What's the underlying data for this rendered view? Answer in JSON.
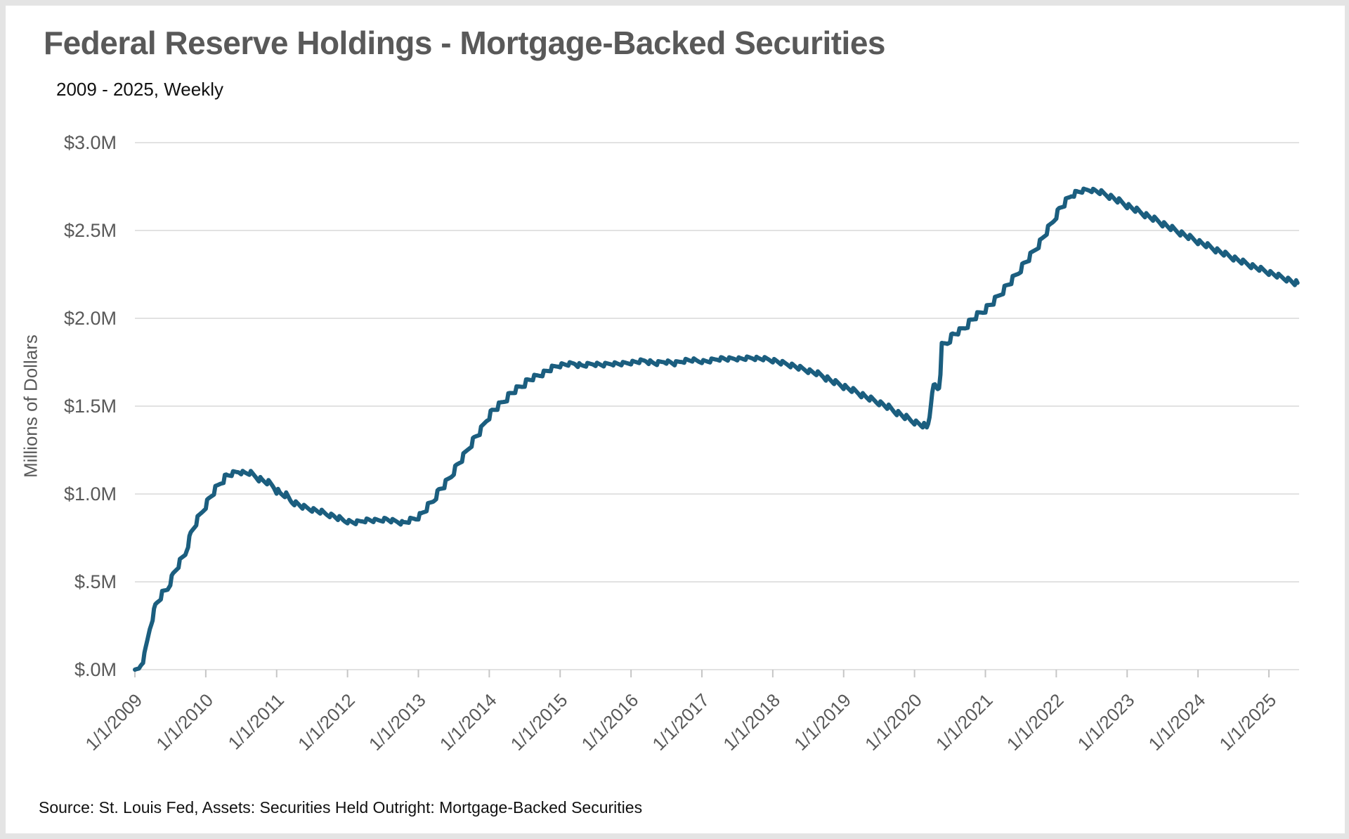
{
  "page": {
    "title": "Federal Reserve Holdings - Mortgage-Backed Securities",
    "subtitle": "2009 - 2025, Weekly",
    "source_note": "Source: St. Louis Fed, Assets: Securities Held Outright: Mortgage-Backed Securities"
  },
  "chart_data": {
    "type": "line",
    "title": "Federal Reserve Holdings - Mortgage-Backed Securities",
    "subtitle": "2009 - 2025, Weekly",
    "ylabel": "Millions of Dollars",
    "source": "Source: St. Louis Fed, Assets: Securities Held Outright: Mortgage-Backed Securities",
    "grid": "horizontal",
    "legend": "none",
    "colors": {
      "line": "#1b5e7f",
      "gridline": "#d9d9d9",
      "tick_mark": "#c6c6c6",
      "axis_text": "#595959",
      "title_text": "#595959",
      "body_text": "#111111",
      "page_border": "#e4e4e4"
    },
    "y_axis": {
      "tick_labels": [
        "$.0M",
        "$.5M",
        "$1.0M",
        "$1.5M",
        "$2.0M",
        "$2.5M",
        "$3.0M"
      ],
      "tick_values": [
        0,
        0.5,
        1.0,
        1.5,
        2.0,
        2.5,
        3.0
      ],
      "ylim": [
        0,
        3.0
      ]
    },
    "x_axis": {
      "tick_labels": [
        "1/1/2009",
        "1/1/2010",
        "1/1/2011",
        "1/1/2012",
        "1/1/2013",
        "1/1/2014",
        "1/1/2015",
        "1/1/2016",
        "1/1/2017",
        "1/1/2018",
        "1/1/2019",
        "1/1/2020",
        "1/1/2021",
        "1/1/2022",
        "1/1/2023",
        "1/1/2024",
        "1/1/2025"
      ],
      "tick_years": [
        2009,
        2010,
        2011,
        2012,
        2013,
        2014,
        2015,
        2016,
        2017,
        2018,
        2019,
        2020,
        2021,
        2022,
        2023,
        2024,
        2025
      ],
      "range": [
        2009.0,
        2025.42
      ]
    },
    "series": [
      {
        "name": "Mortgage-Backed Securities",
        "color": "#1b5e7f",
        "points": [
          [
            2009.0,
            0.0
          ],
          [
            2009.06,
            0.007
          ],
          [
            2009.13,
            0.069
          ],
          [
            2009.21,
            0.237
          ],
          [
            2009.29,
            0.366
          ],
          [
            2009.38,
            0.428
          ],
          [
            2009.46,
            0.462
          ],
          [
            2009.54,
            0.542
          ],
          [
            2009.63,
            0.609
          ],
          [
            2009.71,
            0.66
          ],
          [
            2009.79,
            0.776
          ],
          [
            2009.88,
            0.852
          ],
          [
            2009.96,
            0.908
          ],
          [
            2010.04,
            0.968
          ],
          [
            2010.13,
            1.024
          ],
          [
            2010.21,
            1.066
          ],
          [
            2010.29,
            1.103
          ],
          [
            2010.38,
            1.117
          ],
          [
            2010.46,
            1.128
          ],
          [
            2010.54,
            1.121
          ],
          [
            2010.63,
            1.118
          ],
          [
            2010.71,
            1.099
          ],
          [
            2010.79,
            1.079
          ],
          [
            2010.88,
            1.065
          ],
          [
            2010.96,
            1.043
          ],
          [
            2011.04,
            1.004
          ],
          [
            2011.13,
            0.992
          ],
          [
            2011.21,
            0.958
          ],
          [
            2011.29,
            0.944
          ],
          [
            2011.38,
            0.927
          ],
          [
            2011.46,
            0.917
          ],
          [
            2011.54,
            0.908
          ],
          [
            2011.63,
            0.898
          ],
          [
            2011.71,
            0.885
          ],
          [
            2011.79,
            0.877
          ],
          [
            2011.88,
            0.862
          ],
          [
            2011.96,
            0.848
          ],
          [
            2012.04,
            0.842
          ],
          [
            2012.13,
            0.837
          ],
          [
            2012.21,
            0.848
          ],
          [
            2012.29,
            0.853
          ],
          [
            2012.38,
            0.849
          ],
          [
            2012.46,
            0.852
          ],
          [
            2012.54,
            0.857
          ],
          [
            2012.63,
            0.848
          ],
          [
            2012.71,
            0.843
          ],
          [
            2012.79,
            0.835
          ],
          [
            2012.88,
            0.852
          ],
          [
            2012.96,
            0.862
          ],
          [
            2013.04,
            0.884
          ],
          [
            2013.13,
            0.927
          ],
          [
            2013.21,
            0.964
          ],
          [
            2013.29,
            1.02
          ],
          [
            2013.38,
            1.058
          ],
          [
            2013.46,
            1.103
          ],
          [
            2013.54,
            1.16
          ],
          [
            2013.63,
            1.21
          ],
          [
            2013.71,
            1.264
          ],
          [
            2013.79,
            1.317
          ],
          [
            2013.88,
            1.362
          ],
          [
            2013.96,
            1.422
          ],
          [
            2014.04,
            1.472
          ],
          [
            2014.13,
            1.5
          ],
          [
            2014.21,
            1.532
          ],
          [
            2014.29,
            1.567
          ],
          [
            2014.38,
            1.596
          ],
          [
            2014.46,
            1.617
          ],
          [
            2014.54,
            1.645
          ],
          [
            2014.63,
            1.665
          ],
          [
            2014.71,
            1.678
          ],
          [
            2014.79,
            1.695
          ],
          [
            2014.88,
            1.717
          ],
          [
            2014.96,
            1.73
          ],
          [
            2015.04,
            1.737
          ],
          [
            2015.13,
            1.74
          ],
          [
            2015.21,
            1.744
          ],
          [
            2015.29,
            1.731
          ],
          [
            2015.38,
            1.735
          ],
          [
            2015.46,
            1.742
          ],
          [
            2015.54,
            1.738
          ],
          [
            2015.63,
            1.735
          ],
          [
            2015.71,
            1.743
          ],
          [
            2015.79,
            1.742
          ],
          [
            2015.88,
            1.741
          ],
          [
            2015.96,
            1.747
          ],
          [
            2016.04,
            1.751
          ],
          [
            2016.13,
            1.756
          ],
          [
            2016.21,
            1.76
          ],
          [
            2016.29,
            1.748
          ],
          [
            2016.38,
            1.743
          ],
          [
            2016.46,
            1.755
          ],
          [
            2016.54,
            1.751
          ],
          [
            2016.63,
            1.742
          ],
          [
            2016.71,
            1.756
          ],
          [
            2016.79,
            1.762
          ],
          [
            2016.88,
            1.762
          ],
          [
            2016.96,
            1.756
          ],
          [
            2017.04,
            1.755
          ],
          [
            2017.13,
            1.759
          ],
          [
            2017.21,
            1.769
          ],
          [
            2017.29,
            1.772
          ],
          [
            2017.38,
            1.768
          ],
          [
            2017.46,
            1.772
          ],
          [
            2017.54,
            1.77
          ],
          [
            2017.63,
            1.773
          ],
          [
            2017.71,
            1.776
          ],
          [
            2017.79,
            1.772
          ],
          [
            2017.88,
            1.77
          ],
          [
            2017.96,
            1.765
          ],
          [
            2018.04,
            1.758
          ],
          [
            2018.13,
            1.747
          ],
          [
            2018.21,
            1.74
          ],
          [
            2018.29,
            1.73
          ],
          [
            2018.38,
            1.718
          ],
          [
            2018.46,
            1.708
          ],
          [
            2018.54,
            1.697
          ],
          [
            2018.63,
            1.686
          ],
          [
            2018.71,
            1.672
          ],
          [
            2018.79,
            1.653
          ],
          [
            2018.88,
            1.636
          ],
          [
            2018.96,
            1.622
          ],
          [
            2019.04,
            1.605
          ],
          [
            2019.13,
            1.591
          ],
          [
            2019.21,
            1.576
          ],
          [
            2019.29,
            1.558
          ],
          [
            2019.38,
            1.542
          ],
          [
            2019.46,
            1.527
          ],
          [
            2019.54,
            1.513
          ],
          [
            2019.63,
            1.495
          ],
          [
            2019.71,
            1.474
          ],
          [
            2019.79,
            1.456
          ],
          [
            2019.88,
            1.437
          ],
          [
            2019.96,
            1.418
          ],
          [
            2020.04,
            1.404
          ],
          [
            2020.13,
            1.389
          ],
          [
            2020.18,
            1.372
          ],
          [
            2020.22,
            1.465
          ],
          [
            2020.25,
            1.58
          ],
          [
            2020.28,
            1.621
          ],
          [
            2020.32,
            1.598
          ],
          [
            2020.36,
            1.622
          ],
          [
            2020.38,
            1.845
          ],
          [
            2020.46,
            1.862
          ],
          [
            2020.54,
            1.906
          ],
          [
            2020.63,
            1.925
          ],
          [
            2020.71,
            1.95
          ],
          [
            2020.79,
            1.985
          ],
          [
            2020.88,
            2.018
          ],
          [
            2020.96,
            2.039
          ],
          [
            2021.04,
            2.068
          ],
          [
            2021.13,
            2.101
          ],
          [
            2021.21,
            2.14
          ],
          [
            2021.29,
            2.18
          ],
          [
            2021.38,
            2.22
          ],
          [
            2021.46,
            2.26
          ],
          [
            2021.54,
            2.308
          ],
          [
            2021.63,
            2.352
          ],
          [
            2021.71,
            2.398
          ],
          [
            2021.79,
            2.445
          ],
          [
            2021.88,
            2.505
          ],
          [
            2021.96,
            2.558
          ],
          [
            2022.04,
            2.62
          ],
          [
            2022.13,
            2.662
          ],
          [
            2022.21,
            2.7
          ],
          [
            2022.29,
            2.718
          ],
          [
            2022.38,
            2.728
          ],
          [
            2022.46,
            2.732
          ],
          [
            2022.54,
            2.728
          ],
          [
            2022.63,
            2.717
          ],
          [
            2022.71,
            2.703
          ],
          [
            2022.79,
            2.688
          ],
          [
            2022.88,
            2.67
          ],
          [
            2022.96,
            2.652
          ],
          [
            2023.04,
            2.634
          ],
          [
            2023.13,
            2.617
          ],
          [
            2023.21,
            2.6
          ],
          [
            2023.29,
            2.583
          ],
          [
            2023.38,
            2.566
          ],
          [
            2023.46,
            2.549
          ],
          [
            2023.54,
            2.531
          ],
          [
            2023.63,
            2.513
          ],
          [
            2023.71,
            2.496
          ],
          [
            2023.79,
            2.479
          ],
          [
            2023.88,
            2.462
          ],
          [
            2023.96,
            2.446
          ],
          [
            2024.04,
            2.43
          ],
          [
            2024.13,
            2.415
          ],
          [
            2024.21,
            2.399
          ],
          [
            2024.29,
            2.383
          ],
          [
            2024.38,
            2.367
          ],
          [
            2024.46,
            2.352
          ],
          [
            2024.54,
            2.337
          ],
          [
            2024.63,
            2.322
          ],
          [
            2024.71,
            2.308
          ],
          [
            2024.79,
            2.294
          ],
          [
            2024.88,
            2.281
          ],
          [
            2024.96,
            2.268
          ],
          [
            2025.04,
            2.255
          ],
          [
            2025.13,
            2.242
          ],
          [
            2025.21,
            2.23
          ],
          [
            2025.29,
            2.218
          ],
          [
            2025.38,
            2.2
          ],
          [
            2025.42,
            2.183
          ]
        ]
      }
    ]
  }
}
